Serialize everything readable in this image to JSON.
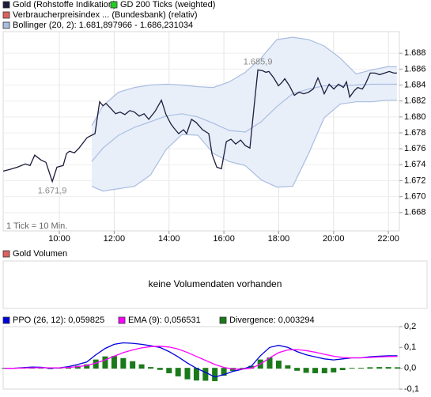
{
  "chart_data": [
    {
      "type": "line",
      "note": "1 Tick = 10 Min.",
      "xlim": [
        7.95,
        22.4
      ],
      "xticks": [
        {
          "value": 10,
          "label": "10:00"
        },
        {
          "value": 12,
          "label": "12:00"
        },
        {
          "value": 14,
          "label": "14:00"
        },
        {
          "value": 16,
          "label": "16:00"
        },
        {
          "value": 18,
          "label": "18:00"
        },
        {
          "value": 20,
          "label": "20:00"
        },
        {
          "value": 22,
          "label": "22:00"
        }
      ],
      "ylim": [
        1665.7,
        1690.7
      ],
      "yticks": [
        {
          "value": 1668,
          "label": "1.668"
        },
        {
          "value": 1670,
          "label": "1.670"
        },
        {
          "value": 1672,
          "label": "1.672"
        },
        {
          "value": 1674,
          "label": "1.674"
        },
        {
          "value": 1676,
          "label": "1.676"
        },
        {
          "value": 1678,
          "label": "1.678"
        },
        {
          "value": 1680,
          "label": "1.680"
        },
        {
          "value": 1682,
          "label": "1.682"
        },
        {
          "value": 1684,
          "label": "1.684"
        },
        {
          "value": 1686,
          "label": "1.686"
        },
        {
          "value": 1688,
          "label": "1.688"
        }
      ],
      "grid": true,
      "series": [
        {
          "name": "Gold (Rohstoffe Indikation)",
          "color": "#1c1c3c",
          "type": "line",
          "x": [
            7.95,
            8.18,
            8.47,
            8.76,
            8.93,
            9.1,
            9.33,
            9.51,
            9.74,
            9.91,
            10.14,
            10.26,
            10.37,
            10.55,
            10.72,
            11.01,
            11.18,
            11.3,
            11.47,
            11.59,
            11.7,
            11.87,
            12.05,
            12.22,
            12.39,
            12.57,
            12.74,
            12.91,
            13.09,
            13.26,
            13.49,
            13.72,
            13.89,
            14.07,
            14.18,
            14.35,
            14.53,
            14.64,
            14.82,
            14.99,
            15.22,
            15.45,
            15.57,
            15.74,
            15.91,
            16.09,
            16.26,
            16.43,
            16.61,
            16.78,
            16.95,
            17.12,
            17.24,
            17.41,
            17.53,
            17.64,
            17.82,
            17.99,
            18.11,
            18.22,
            18.39,
            18.57,
            18.74,
            18.91,
            19.09,
            19.26,
            19.43,
            19.55,
            19.66,
            19.84,
            20.01,
            20.18,
            20.36,
            20.47,
            20.59,
            20.76,
            20.88,
            21.05,
            21.16,
            21.34,
            21.51,
            21.68,
            21.86,
            22.03,
            22.2,
            22.31
          ],
          "values": [
            1673.2,
            1673.4,
            1673.7,
            1674.1,
            1673.9,
            1675.2,
            1674.6,
            1674.3,
            1671.9,
            1673.7,
            1673.9,
            1675.4,
            1675.7,
            1675.5,
            1676.1,
            1677.4,
            1677.7,
            1677.9,
            1681.9,
            1681.4,
            1681.7,
            1681.1,
            1680.4,
            1680.6,
            1680.3,
            1680.8,
            1680.6,
            1680.1,
            1680.4,
            1679.7,
            1680.7,
            1682.1,
            1680.3,
            1679.1,
            1678.6,
            1677.9,
            1678.4,
            1677.9,
            1679.7,
            1679.3,
            1678.4,
            1677.9,
            1675.3,
            1673.7,
            1673.5,
            1676.9,
            1677.2,
            1676.6,
            1677.1,
            1676.4,
            1676.1,
            1681.9,
            1685.9,
            1685.8,
            1685.6,
            1685.7,
            1684.9,
            1683.9,
            1684.3,
            1684.8,
            1683.9,
            1682.7,
            1683.1,
            1682.9,
            1683.1,
            1683.5,
            1684.9,
            1683.9,
            1682.9,
            1684.1,
            1683.5,
            1684.1,
            1683.7,
            1684.4,
            1682.5,
            1683.3,
            1683.7,
            1683.5,
            1684.1,
            1685.5,
            1685.5,
            1685.3,
            1685.5,
            1685.7,
            1685.5,
            1685.5
          ]
        },
        {
          "name": "GD 200 Ticks (weighted)",
          "color": "#22cc22"
        },
        {
          "name": "Verbraucherpreisindex ... (Bundesbank) (relativ)",
          "color": "#e06060"
        },
        {
          "name": "Bollinger (20, 2): 1.681,897966 - 1.686,231034",
          "color": "#a9bde0",
          "fill": "#e8eff9",
          "type": "band",
          "x": [
            11.18,
            11.59,
            12.16,
            12.74,
            13.32,
            13.89,
            14.47,
            15.05,
            15.62,
            16.2,
            16.78,
            17.36,
            17.93,
            18.51,
            19.09,
            19.66,
            20.24,
            20.82,
            21.39,
            21.97,
            22.31
          ],
          "upper": [
            1678.9,
            1681.4,
            1683.1,
            1683.7,
            1684.0,
            1684.1,
            1684.0,
            1683.8,
            1683.7,
            1684.4,
            1685.6,
            1687.4,
            1689.7,
            1690.0,
            1689.7,
            1688.9,
            1687.4,
            1685.4,
            1685.9,
            1686.3,
            1686.3
          ],
          "middle": [
            1674.4,
            1676.1,
            1677.7,
            1678.7,
            1679.4,
            1680.1,
            1680.4,
            1680.0,
            1679.2,
            1678.3,
            1678.1,
            1679.4,
            1681.3,
            1682.9,
            1683.5,
            1683.9,
            1683.9,
            1684.0,
            1684.1,
            1684.1,
            1684.1
          ],
          "lower": [
            1671.3,
            1670.7,
            1671.0,
            1671.3,
            1672.7,
            1675.9,
            1677.8,
            1677.7,
            1675.4,
            1674.4,
            1673.9,
            1672.1,
            1671.2,
            1671.3,
            1675.4,
            1679.9,
            1681.6,
            1681.9,
            1681.9,
            1682.1,
            1682.1
          ]
        }
      ],
      "annotations": [
        {
          "text": "1.685,9",
          "x": 17.24,
          "y": 1685.9,
          "position": "above"
        },
        {
          "text": "1.671,9",
          "x": 9.74,
          "y": 1671.9,
          "position": "below"
        }
      ]
    },
    {
      "type": "empty",
      "title": "Gold Volumen",
      "color": "#e06060",
      "message": "keine Volumendaten vorhanden"
    },
    {
      "type": "line",
      "xlim": [
        7.95,
        22.4
      ],
      "ylim": [
        -0.1,
        0.2
      ],
      "yticks": [
        {
          "value": -0.1,
          "label": "-0,1"
        },
        {
          "value": 0,
          "label": "0,0"
        },
        {
          "value": 0.1,
          "label": "0,1"
        },
        {
          "value": 0.2,
          "label": "0,2"
        }
      ],
      "series": [
        {
          "name": "PPO (26, 12): 0,059825",
          "color": "#0000dd",
          "type": "line",
          "x": [
            8.0,
            8.33,
            8.67,
            9.0,
            9.33,
            9.67,
            10.0,
            10.33,
            10.67,
            11.0,
            11.33,
            11.67,
            12.0,
            12.33,
            12.67,
            13.0,
            13.33,
            13.67,
            14.0,
            14.33,
            14.67,
            15.0,
            15.33,
            15.67,
            16.0,
            16.33,
            16.67,
            17.0,
            17.33,
            17.67,
            18.0,
            18.33,
            18.67,
            19.0,
            19.33,
            19.67,
            20.0,
            20.33,
            20.67,
            21.0,
            21.33,
            21.67,
            22.0,
            22.33
          ],
          "values": [
            0.0,
            0.0,
            0.003,
            0.006,
            0.005,
            0.0,
            0.002,
            0.008,
            0.018,
            0.03,
            0.065,
            0.095,
            0.115,
            0.122,
            0.12,
            0.115,
            0.108,
            0.1,
            0.08,
            0.055,
            0.025,
            0.0,
            -0.02,
            -0.042,
            -0.03,
            -0.015,
            -0.005,
            0.01,
            0.06,
            0.1,
            0.11,
            0.1,
            0.08,
            0.065,
            0.055,
            0.045,
            0.04,
            0.045,
            0.05,
            0.05,
            0.055,
            0.058,
            0.06,
            0.06
          ]
        },
        {
          "name": "EMA (9): 0,056531",
          "color": "#ff00ff",
          "type": "line",
          "x": [
            8.0,
            8.33,
            8.67,
            9.0,
            9.33,
            9.67,
            10.0,
            10.33,
            10.67,
            11.0,
            11.33,
            11.67,
            12.0,
            12.33,
            12.67,
            13.0,
            13.33,
            13.67,
            14.0,
            14.33,
            14.67,
            15.0,
            15.33,
            15.67,
            16.0,
            16.33,
            16.67,
            17.0,
            17.33,
            17.67,
            18.0,
            18.33,
            18.67,
            19.0,
            19.33,
            19.67,
            20.0,
            20.33,
            20.67,
            21.0,
            21.33,
            21.67,
            22.0,
            22.33
          ],
          "values": [
            0.0,
            0.0,
            0.001,
            0.002,
            0.003,
            0.002,
            0.002,
            0.004,
            0.008,
            0.013,
            0.025,
            0.04,
            0.058,
            0.075,
            0.088,
            0.098,
            0.104,
            0.106,
            0.102,
            0.092,
            0.076,
            0.057,
            0.038,
            0.018,
            0.004,
            -0.004,
            -0.004,
            0.0,
            0.02,
            0.05,
            0.075,
            0.088,
            0.09,
            0.085,
            0.077,
            0.067,
            0.058,
            0.052,
            0.05,
            0.05,
            0.052,
            0.054,
            0.056,
            0.057
          ]
        },
        {
          "name": "Divergence: 0,003294",
          "color": "#1a7a1a",
          "type": "bar",
          "x": [
            8.0,
            8.33,
            8.67,
            9.0,
            9.33,
            9.67,
            10.0,
            10.33,
            10.67,
            11.0,
            11.33,
            11.67,
            12.0,
            12.33,
            12.67,
            13.0,
            13.33,
            13.67,
            14.0,
            14.33,
            14.67,
            15.0,
            15.33,
            15.67,
            16.0,
            16.33,
            16.67,
            17.0,
            17.33,
            17.67,
            18.0,
            18.33,
            18.67,
            19.0,
            19.33,
            19.67,
            20.0,
            20.33,
            20.67,
            21.0,
            21.33,
            21.67,
            22.0,
            22.33
          ],
          "values": [
            0.0,
            0.0,
            0.002,
            0.004,
            0.002,
            -0.002,
            0.0,
            0.004,
            0.01,
            0.017,
            0.04,
            0.055,
            0.057,
            0.047,
            0.032,
            0.017,
            0.004,
            -0.006,
            -0.022,
            -0.037,
            -0.051,
            -0.057,
            -0.058,
            -0.06,
            -0.034,
            -0.011,
            -0.001,
            0.01,
            0.04,
            0.05,
            0.035,
            0.012,
            -0.01,
            -0.02,
            -0.022,
            -0.022,
            -0.018,
            -0.007,
            0.0,
            0.0,
            0.003,
            0.004,
            0.004,
            0.003
          ]
        }
      ]
    }
  ]
}
